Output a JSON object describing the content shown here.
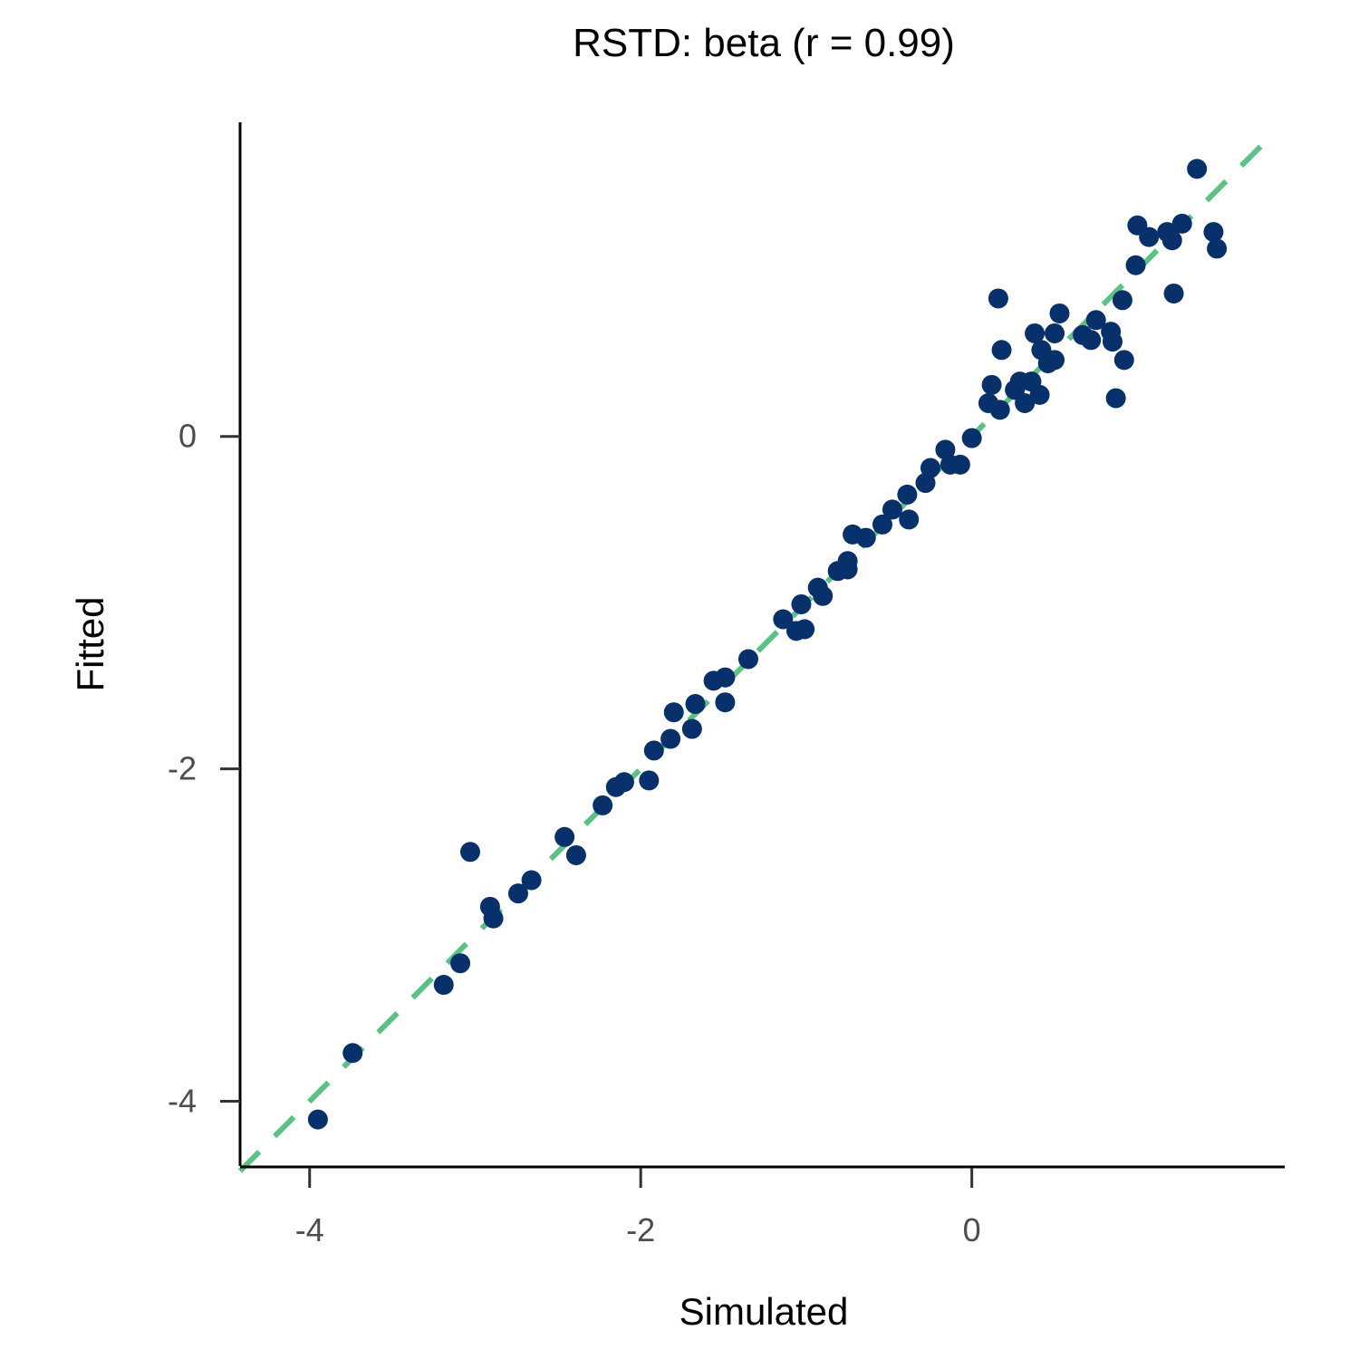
{
  "chart_data": {
    "type": "scatter",
    "title": "RSTD: beta (r = 0.99)",
    "x_label": "Simulated",
    "y_label": "Fitted",
    "xlim": [
      -4.42,
      1.89
    ],
    "ylim": [
      -4.39,
      1.89
    ],
    "xticks": [
      -4,
      -2,
      0
    ],
    "yticks": [
      -4,
      -2,
      0
    ],
    "color": "#08306b",
    "reference_line": {
      "x": [
        -4.42,
        1.79
      ],
      "y": [
        -4.42,
        1.79
      ],
      "color": "#5cc185",
      "dashed": true
    },
    "x": [
      -3.95,
      -3.74,
      -3.19,
      -3.09,
      -3.03,
      -2.91,
      -2.89,
      -2.74,
      -2.66,
      -2.46,
      -2.39,
      -2.23,
      -2.15,
      -2.1,
      -1.95,
      -1.92,
      -1.82,
      -1.8,
      -1.69,
      -1.67,
      -1.56,
      -1.49,
      -1.49,
      -1.35,
      -1.14,
      -1.06,
      -1.01,
      -1.03,
      -0.93,
      -0.9,
      -0.81,
      -0.75,
      -0.75,
      -0.72,
      -0.64,
      -0.54,
      -0.48,
      -0.39,
      -0.38,
      -0.28,
      -0.25,
      -0.16,
      -0.13,
      -0.07,
      0.0,
      0.1,
      0.12,
      0.17,
      0.16,
      0.18,
      0.26,
      0.29,
      0.32,
      0.36,
      0.41,
      0.38,
      0.42,
      0.46,
      0.5,
      0.5,
      0.53,
      0.67,
      0.72,
      0.75,
      0.84,
      0.85,
      0.87,
      0.92,
      0.91,
      0.99,
      1.0,
      1.07,
      1.18,
      1.21,
      1.22,
      1.27,
      1.36,
      1.46,
      1.48
    ],
    "values": [
      -4.11,
      -3.71,
      -3.3,
      -3.17,
      -2.5,
      -2.83,
      -2.9,
      -2.75,
      -2.67,
      -2.41,
      -2.52,
      -2.22,
      -2.11,
      -2.08,
      -2.07,
      -1.89,
      -1.82,
      -1.66,
      -1.76,
      -1.61,
      -1.47,
      -1.45,
      -1.6,
      -1.34,
      -1.1,
      -1.17,
      -1.16,
      -1.01,
      -0.91,
      -0.96,
      -0.81,
      -0.8,
      -0.75,
      -0.59,
      -0.61,
      -0.53,
      -0.44,
      -0.35,
      -0.5,
      -0.28,
      -0.19,
      -0.08,
      -0.17,
      -0.17,
      -0.01,
      0.2,
      0.31,
      0.16,
      0.83,
      0.52,
      0.28,
      0.33,
      0.2,
      0.33,
      0.25,
      0.62,
      0.52,
      0.44,
      0.46,
      0.62,
      0.74,
      0.61,
      0.58,
      0.7,
      0.63,
      0.57,
      0.23,
      0.46,
      0.82,
      1.03,
      1.27,
      1.2,
      1.23,
      1.18,
      0.86,
      1.28,
      1.61,
      1.23,
      1.13
    ]
  }
}
